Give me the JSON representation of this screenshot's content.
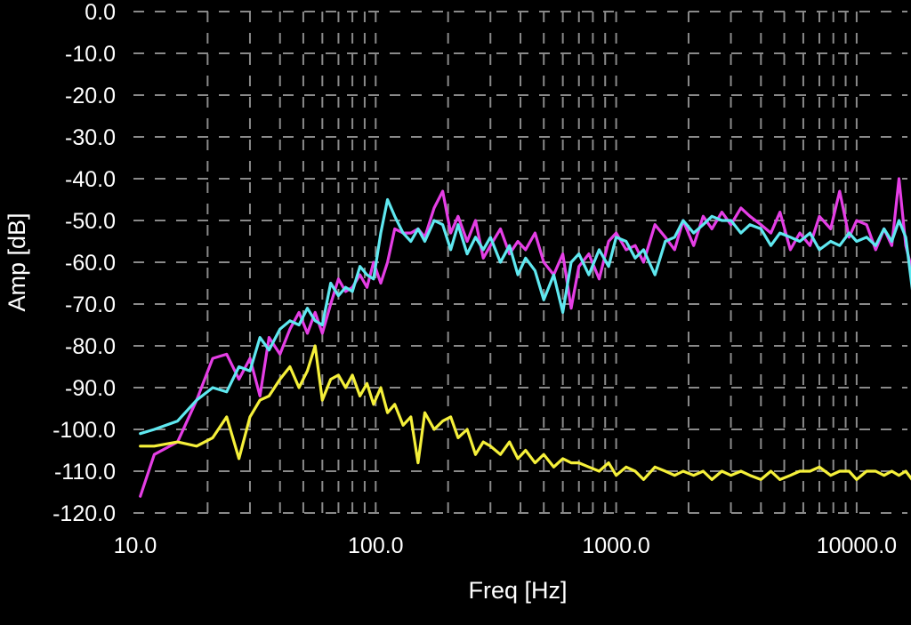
{
  "chart_data": {
    "type": "line",
    "xlabel": "Freq [Hz]",
    "ylabel": "Amp [dB]",
    "x_scale": "log",
    "xlim": [
      10.5,
      17500
    ],
    "ylim": [
      -120,
      0
    ],
    "x_ticks": [
      {
        "value": 10,
        "label": "10.0"
      },
      {
        "value": 100,
        "label": "100.0"
      },
      {
        "value": 1000,
        "label": "1000.0"
      },
      {
        "value": 10000,
        "label": "10000.0"
      }
    ],
    "y_ticks": [
      {
        "value": 0,
        "label": "0.0"
      },
      {
        "value": -10,
        "label": "-10.0"
      },
      {
        "value": -20,
        "label": "-20.0"
      },
      {
        "value": -30,
        "label": "-30.0"
      },
      {
        "value": -40,
        "label": "-40.0"
      },
      {
        "value": -50,
        "label": "-50.0"
      },
      {
        "value": -60,
        "label": "-60.0"
      },
      {
        "value": -70,
        "label": "-70.0"
      },
      {
        "value": -80,
        "label": "-80.0"
      },
      {
        "value": -90,
        "label": "-90.0"
      },
      {
        "value": -100,
        "label": "-100.0"
      },
      {
        "value": -110,
        "label": "-110.0"
      },
      {
        "value": -120,
        "label": "-120.0"
      }
    ],
    "grid": true,
    "background": "#000000",
    "series": [
      {
        "color": "#e53ee5",
        "x": [
          10.5,
          12,
          15,
          18,
          21,
          24,
          27,
          30,
          33,
          36,
          40,
          44,
          48,
          52,
          56,
          60,
          65,
          70,
          75,
          80,
          86,
          92,
          98,
          105,
          112,
          120,
          130,
          140,
          150,
          160,
          175,
          190,
          205,
          220,
          240,
          260,
          280,
          300,
          330,
          360,
          390,
          420,
          460,
          500,
          550,
          600,
          650,
          700,
          770,
          850,
          930,
          1000,
          1100,
          1200,
          1300,
          1450,
          1600,
          1750,
          1900,
          2100,
          2300,
          2500,
          2750,
          3000,
          3300,
          3600,
          4000,
          4400,
          4800,
          5300,
          5800,
          6400,
          7000,
          7800,
          8500,
          9300,
          10000,
          11000,
          12000,
          13000,
          14000,
          15000,
          16000,
          17000,
          17500
        ],
        "values": [
          -116,
          -106,
          -103,
          -93,
          -83,
          -82,
          -88,
          -83,
          -92,
          -78,
          -82,
          -76,
          -72,
          -77,
          -72,
          -77,
          -70,
          -64,
          -67,
          -66,
          -63,
          -66,
          -60,
          -65,
          -60,
          -52,
          -53,
          -53,
          -52,
          -54,
          -47,
          -43,
          -53,
          -49,
          -55,
          -50,
          -59,
          -56,
          -52,
          -58,
          -55,
          -57,
          -53,
          -60,
          -63,
          -58,
          -71,
          -61,
          -58,
          -64,
          -55,
          -53,
          -57,
          -56,
          -60,
          -51,
          -54,
          -57,
          -50,
          -56,
          -49,
          -52,
          -48,
          -51,
          -47,
          -49,
          -51,
          -53,
          -48,
          -57,
          -53,
          -56,
          -49,
          -52,
          -43,
          -54,
          -50,
          -51,
          -57,
          -52,
          -56,
          -40,
          -56,
          -62,
          -65
        ]
      },
      {
        "color": "#5fe8f0",
        "x": [
          10.5,
          12,
          15,
          18,
          21,
          24,
          27,
          30,
          33,
          36,
          40,
          44,
          48,
          52,
          56,
          60,
          65,
          70,
          75,
          80,
          86,
          92,
          98,
          105,
          112,
          120,
          130,
          140,
          150,
          160,
          175,
          190,
          205,
          220,
          240,
          260,
          280,
          300,
          330,
          360,
          390,
          420,
          460,
          500,
          550,
          600,
          650,
          700,
          770,
          850,
          930,
          1000,
          1100,
          1200,
          1300,
          1450,
          1600,
          1750,
          1900,
          2100,
          2300,
          2500,
          2750,
          3000,
          3300,
          3600,
          4000,
          4400,
          4800,
          5300,
          5800,
          6400,
          7000,
          7800,
          8500,
          9300,
          10000,
          11000,
          12000,
          13000,
          14000,
          15000,
          16000,
          17000,
          17500
        ],
        "values": [
          -101,
          -100,
          -98,
          -93,
          -90,
          -91,
          -85,
          -86,
          -78,
          -81,
          -76,
          -74,
          -75,
          -71,
          -74,
          -75,
          -65,
          -68,
          -66,
          -67,
          -61,
          -63,
          -64,
          -53,
          -45,
          -49,
          -53,
          -55,
          -52,
          -55,
          -50,
          -51,
          -57,
          -51,
          -58,
          -54,
          -57,
          -54,
          -60,
          -56,
          -63,
          -59,
          -62,
          -69,
          -63,
          -72,
          -60,
          -58,
          -63,
          -57,
          -61,
          -54,
          -55,
          -59,
          -57,
          -63,
          -55,
          -54,
          -50,
          -53,
          -51,
          -49,
          -50,
          -50,
          -53,
          -51,
          -52,
          -56,
          -53,
          -54,
          -55,
          -53,
          -57,
          -55,
          -56,
          -53,
          -55,
          -54,
          -56,
          -52,
          -55,
          -50,
          -54,
          -66,
          -72
        ]
      },
      {
        "color": "#f5f03a",
        "x": [
          10.5,
          12,
          15,
          18,
          21,
          24,
          27,
          30,
          33,
          36,
          40,
          44,
          48,
          52,
          56,
          60,
          65,
          70,
          75,
          80,
          86,
          92,
          98,
          105,
          112,
          120,
          130,
          140,
          150,
          160,
          175,
          190,
          205,
          220,
          240,
          260,
          280,
          300,
          330,
          360,
          390,
          420,
          460,
          500,
          550,
          600,
          650,
          700,
          770,
          850,
          930,
          1000,
          1100,
          1200,
          1300,
          1450,
          1600,
          1750,
          1900,
          2100,
          2300,
          2500,
          2750,
          3000,
          3300,
          3600,
          4000,
          4400,
          4800,
          5300,
          5800,
          6400,
          7000,
          7800,
          8500,
          9300,
          10000,
          11000,
          12000,
          13000,
          14000,
          15000,
          16000,
          17000,
          17500
        ],
        "values": [
          -104,
          -104,
          -103,
          -104,
          -102,
          -97,
          -107,
          -97,
          -93,
          -92,
          -88,
          -85,
          -90,
          -86,
          -80,
          -93,
          -88,
          -87,
          -90,
          -87,
          -92,
          -89,
          -94,
          -90,
          -96,
          -94,
          -99,
          -97,
          -108,
          -96,
          -100,
          -98,
          -97,
          -102,
          -100,
          -106,
          -103,
          -104,
          -106,
          -103,
          -107,
          -105,
          -108,
          -106,
          -109,
          -107,
          -108,
          -108,
          -109,
          -110,
          -108,
          -111,
          -109,
          -110,
          -112,
          -109,
          -110,
          -111,
          -110,
          -111,
          -110,
          -112,
          -110,
          -111,
          -110,
          -111,
          -112,
          -110,
          -112,
          -111,
          -110,
          -110,
          -109,
          -111,
          -110,
          -110,
          -112,
          -110,
          -110,
          -111,
          -110,
          -111,
          -110,
          -112,
          -114
        ]
      }
    ]
  }
}
